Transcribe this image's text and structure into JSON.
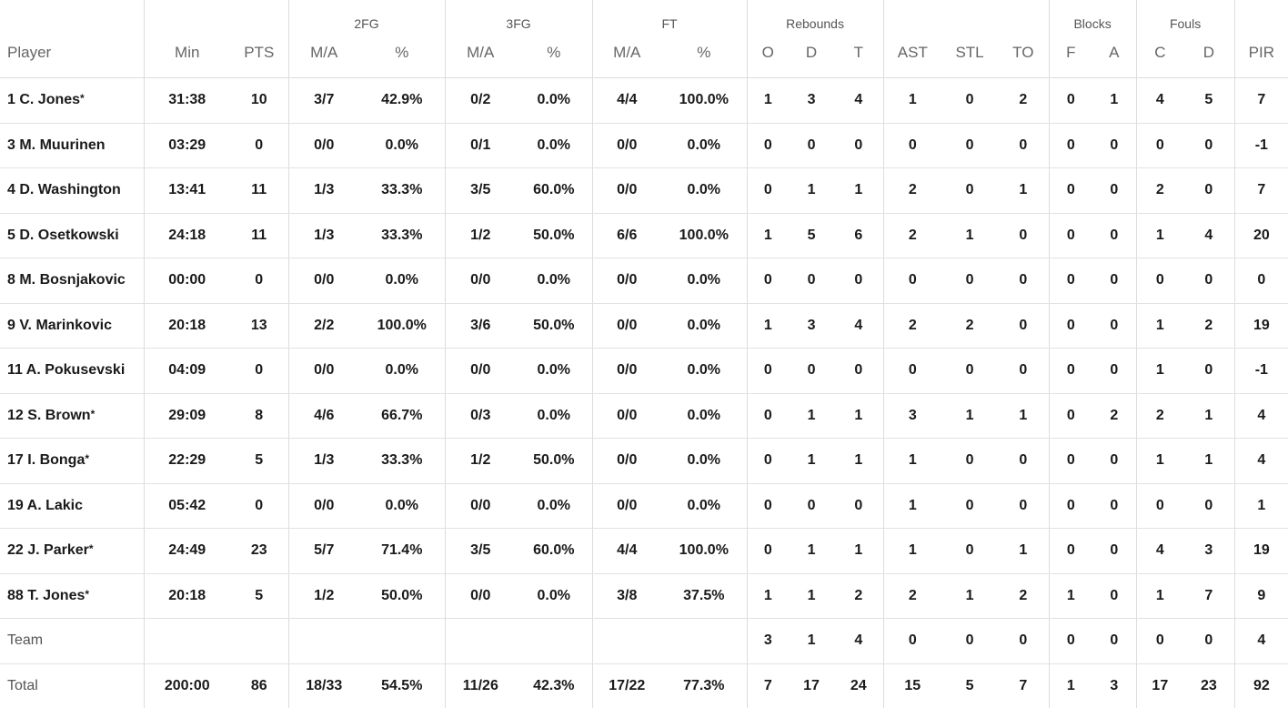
{
  "groups": {
    "fg2": "2FG",
    "fg3": "3FG",
    "ft": "FT",
    "rebounds": "Rebounds",
    "blocks": "Blocks",
    "fouls": "Fouls"
  },
  "columns": [
    "Player",
    "Min",
    "PTS",
    "M/A",
    "%",
    "M/A",
    "%",
    "M/A",
    "%",
    "O",
    "D",
    "T",
    "AST",
    "STL",
    "TO",
    "F",
    "A",
    "C",
    "D",
    "PIR"
  ],
  "rows": [
    {
      "player": "1 C. Jones",
      "star": "*",
      "cells": [
        "31:38",
        "10",
        "3/7",
        "42.9%",
        "0/2",
        "0.0%",
        "4/4",
        "100.0%",
        "1",
        "3",
        "4",
        "1",
        "0",
        "2",
        "0",
        "1",
        "4",
        "5",
        "7"
      ]
    },
    {
      "player": "3 M. Muurinen",
      "star": "",
      "cells": [
        "03:29",
        "0",
        "0/0",
        "0.0%",
        "0/1",
        "0.0%",
        "0/0",
        "0.0%",
        "0",
        "0",
        "0",
        "0",
        "0",
        "0",
        "0",
        "0",
        "0",
        "0",
        "-1"
      ]
    },
    {
      "player": "4 D. Washington",
      "star": "",
      "cells": [
        "13:41",
        "11",
        "1/3",
        "33.3%",
        "3/5",
        "60.0%",
        "0/0",
        "0.0%",
        "0",
        "1",
        "1",
        "2",
        "0",
        "1",
        "0",
        "0",
        "2",
        "0",
        "7"
      ]
    },
    {
      "player": "5 D. Osetkowski",
      "star": "",
      "cells": [
        "24:18",
        "11",
        "1/3",
        "33.3%",
        "1/2",
        "50.0%",
        "6/6",
        "100.0%",
        "1",
        "5",
        "6",
        "2",
        "1",
        "0",
        "0",
        "0",
        "1",
        "4",
        "20"
      ]
    },
    {
      "player": "8 M. Bosnjakovic",
      "star": "",
      "cells": [
        "00:00",
        "0",
        "0/0",
        "0.0%",
        "0/0",
        "0.0%",
        "0/0",
        "0.0%",
        "0",
        "0",
        "0",
        "0",
        "0",
        "0",
        "0",
        "0",
        "0",
        "0",
        "0"
      ]
    },
    {
      "player": "9 V. Marinkovic",
      "star": "",
      "cells": [
        "20:18",
        "13",
        "2/2",
        "100.0%",
        "3/6",
        "50.0%",
        "0/0",
        "0.0%",
        "1",
        "3",
        "4",
        "2",
        "2",
        "0",
        "0",
        "0",
        "1",
        "2",
        "19"
      ]
    },
    {
      "player": "11 A. Pokusevski",
      "star": "",
      "cells": [
        "04:09",
        "0",
        "0/0",
        "0.0%",
        "0/0",
        "0.0%",
        "0/0",
        "0.0%",
        "0",
        "0",
        "0",
        "0",
        "0",
        "0",
        "0",
        "0",
        "1",
        "0",
        "-1"
      ]
    },
    {
      "player": "12 S. Brown",
      "star": "*",
      "cells": [
        "29:09",
        "8",
        "4/6",
        "66.7%",
        "0/3",
        "0.0%",
        "0/0",
        "0.0%",
        "0",
        "1",
        "1",
        "3",
        "1",
        "1",
        "0",
        "2",
        "2",
        "1",
        "4"
      ]
    },
    {
      "player": "17 I. Bonga",
      "star": "*",
      "cells": [
        "22:29",
        "5",
        "1/3",
        "33.3%",
        "1/2",
        "50.0%",
        "0/0",
        "0.0%",
        "0",
        "1",
        "1",
        "1",
        "0",
        "0",
        "0",
        "0",
        "1",
        "1",
        "4"
      ]
    },
    {
      "player": "19 A. Lakic",
      "star": "",
      "cells": [
        "05:42",
        "0",
        "0/0",
        "0.0%",
        "0/0",
        "0.0%",
        "0/0",
        "0.0%",
        "0",
        "0",
        "0",
        "1",
        "0",
        "0",
        "0",
        "0",
        "0",
        "0",
        "1"
      ]
    },
    {
      "player": "22 J. Parker",
      "star": "*",
      "cells": [
        "24:49",
        "23",
        "5/7",
        "71.4%",
        "3/5",
        "60.0%",
        "4/4",
        "100.0%",
        "0",
        "1",
        "1",
        "1",
        "0",
        "1",
        "0",
        "0",
        "4",
        "3",
        "19"
      ]
    },
    {
      "player": "88 T. Jones",
      "star": "*",
      "cells": [
        "20:18",
        "5",
        "1/2",
        "50.0%",
        "0/0",
        "0.0%",
        "3/8",
        "37.5%",
        "1",
        "1",
        "2",
        "2",
        "1",
        "2",
        "1",
        "0",
        "1",
        "7",
        "9"
      ]
    }
  ],
  "team": {
    "player": "Team",
    "cells": [
      "",
      "",
      "",
      "",
      "",
      "",
      "",
      "",
      "3",
      "1",
      "4",
      "0",
      "0",
      "0",
      "0",
      "0",
      "0",
      "0",
      "4"
    ]
  },
  "total": {
    "player": "Total",
    "cells": [
      "200:00",
      "86",
      "18/33",
      "54.5%",
      "11/26",
      "42.3%",
      "17/22",
      "77.3%",
      "7",
      "17",
      "24",
      "15",
      "5",
      "7",
      "1",
      "3",
      "17",
      "23",
      "92"
    ]
  }
}
